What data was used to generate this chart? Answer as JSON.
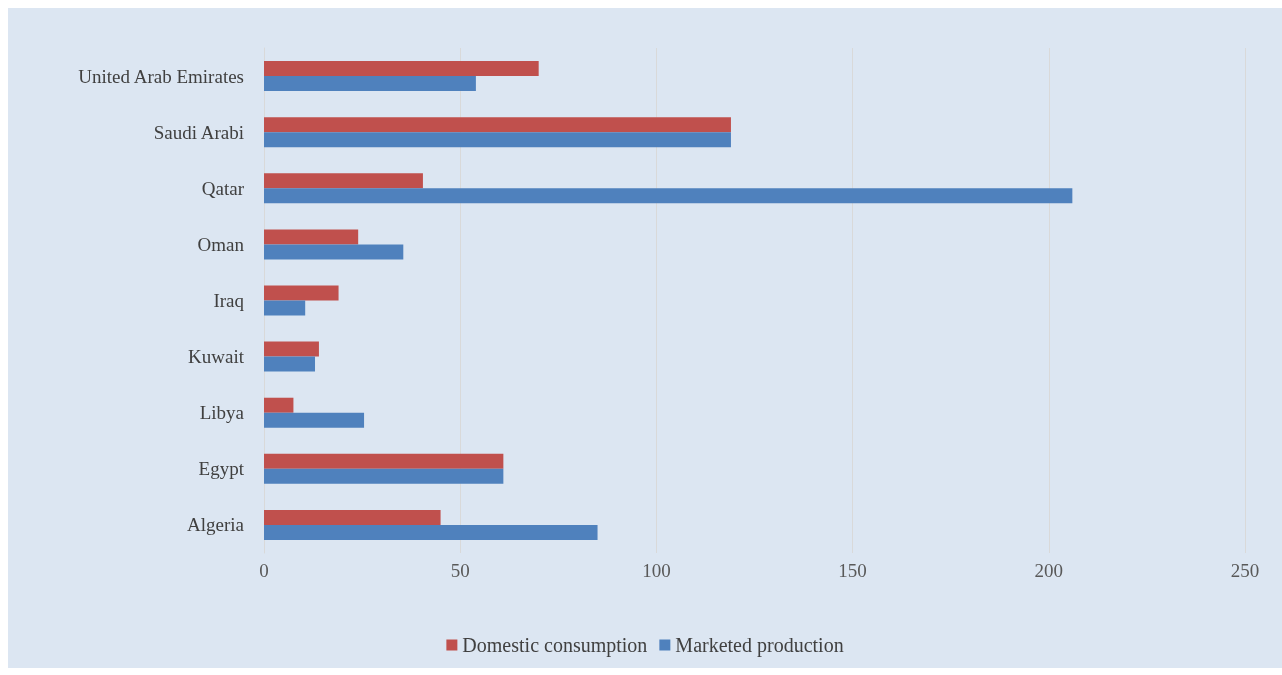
{
  "chart_data": {
    "type": "bar",
    "orientation": "horizontal",
    "categories": [
      "United Arab Emirates",
      "Saudi Arabi",
      "Qatar",
      "Oman",
      "Iraq",
      "Kuwait",
      "Libya",
      "Egypt",
      "Algeria"
    ],
    "series": [
      {
        "name": "Domestic consumption",
        "color": "#c0504d",
        "values": [
          70,
          119,
          40.5,
          24,
          19,
          14,
          7.5,
          61,
          45
        ]
      },
      {
        "name": "Marketed production",
        "color": "#4f81bd",
        "values": [
          54,
          119,
          206,
          35.5,
          10.5,
          13,
          25.5,
          61,
          85
        ]
      }
    ],
    "xlim": [
      0,
      250
    ],
    "xticks": [
      0,
      50,
      100,
      150,
      200,
      250
    ],
    "grid": "x",
    "legend": "bottom"
  }
}
